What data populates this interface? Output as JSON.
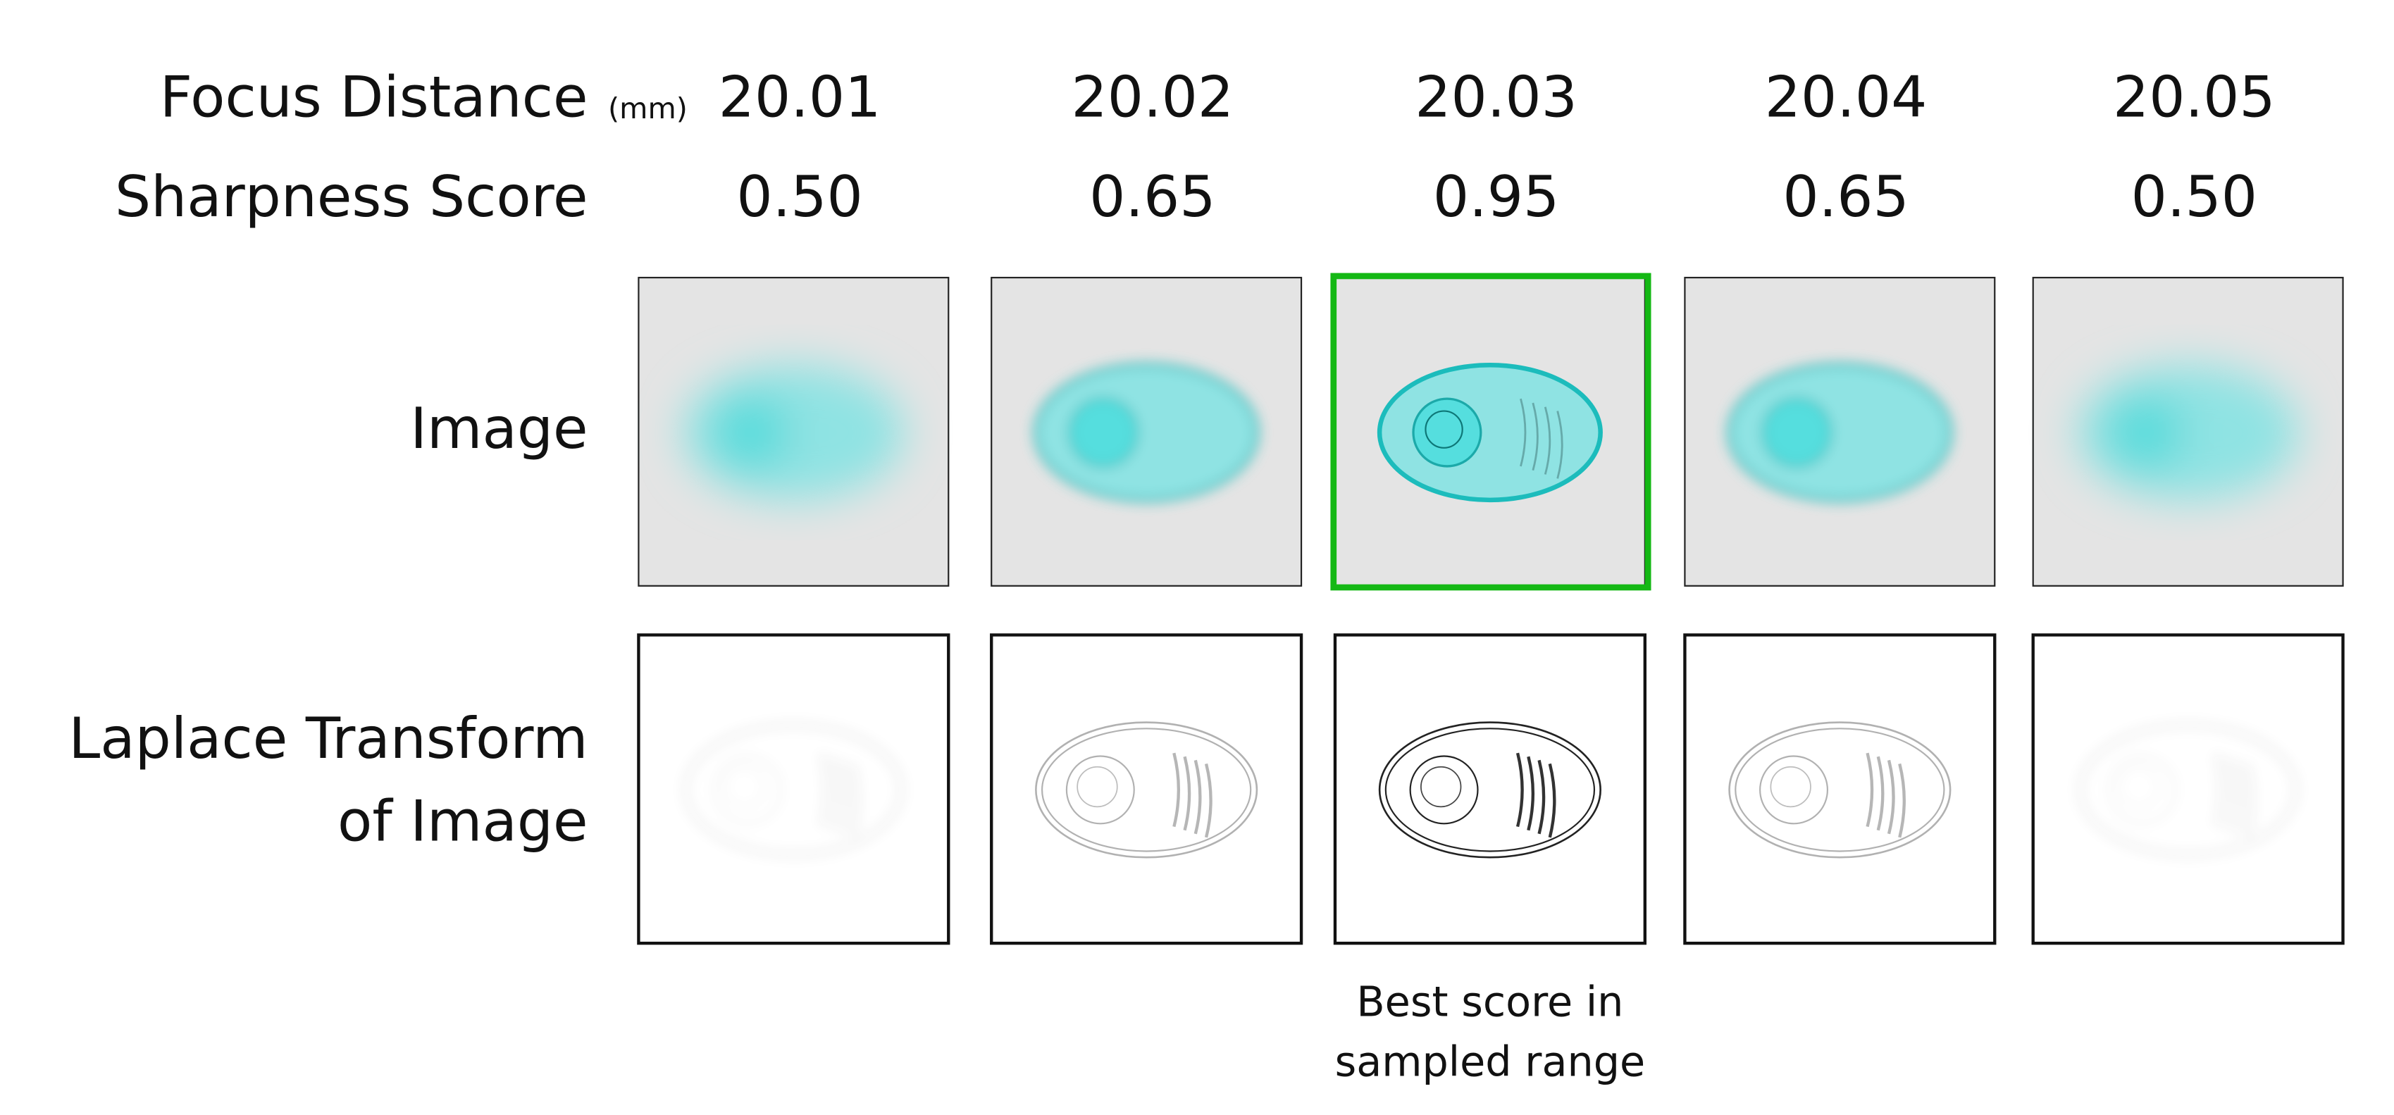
{
  "row_labels": {
    "focus_distance": "Focus Distance",
    "focus_unit": "(mm)",
    "sharpness": "Sharpness Score",
    "image": "Image",
    "laplace_line1": "Laplace Transform",
    "laplace_line2": "of Image"
  },
  "columns": [
    {
      "focus_distance": "20.01",
      "sharpness": "0.50"
    },
    {
      "focus_distance": "20.02",
      "sharpness": "0.65"
    },
    {
      "focus_distance": "20.03",
      "sharpness": "0.95"
    },
    {
      "focus_distance": "20.04",
      "sharpness": "0.65"
    },
    {
      "focus_distance": "20.05",
      "sharpness": "0.50"
    }
  ],
  "caption": {
    "line1": "Best score in",
    "line2": "sampled range"
  }
}
